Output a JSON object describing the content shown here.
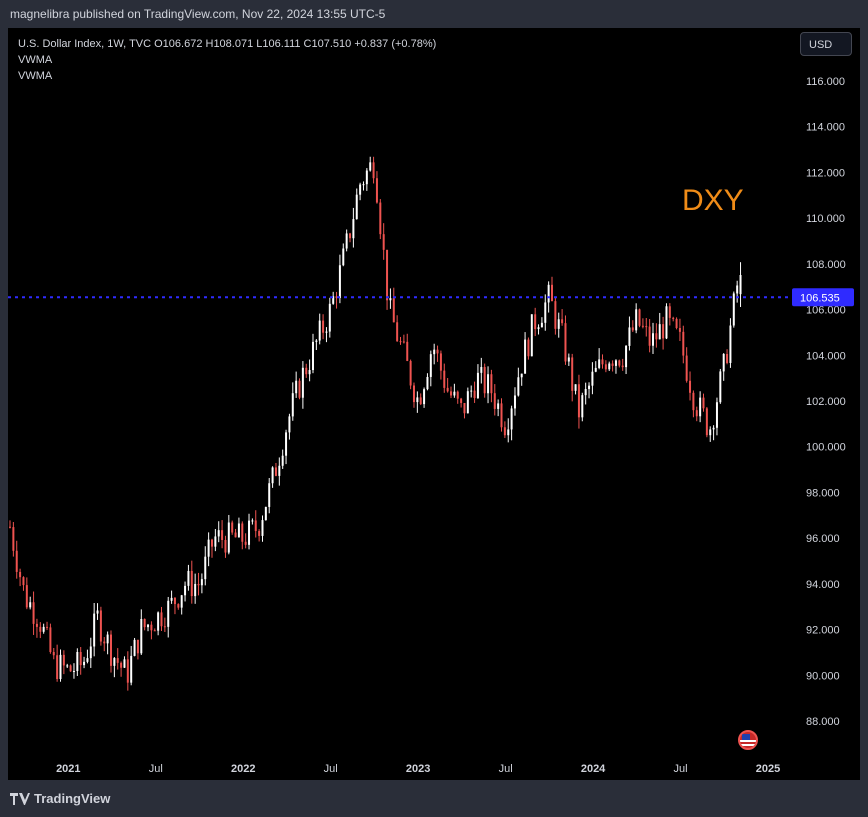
{
  "header": {
    "published_text": "magnelibra published on TradingView.com, Nov 22, 2024 13:55 UTC-5"
  },
  "legend": {
    "symbol_line": "U.S. Dollar Index, 1W, TVC  O106.672  H108.071  L106.111  C107.510  +0.837 (+0.78%)",
    "indicator_1": "VWMA",
    "indicator_2": "VWMA"
  },
  "currency_button": "USD",
  "annotation": "DXY",
  "price_tag": "106.535",
  "footer": {
    "logo_text": "TradingView"
  },
  "colors": {
    "background": "#000000",
    "up": "#ffffff",
    "down": "#ef5350",
    "price_line": "#2f2bff",
    "annotation": "#f08c18"
  },
  "chart_data": {
    "type": "candlestick",
    "title": "U.S. Dollar Index, 1W, TVC",
    "ylim": [
      87,
      117
    ],
    "y_ticks": [
      "116.000",
      "114.000",
      "112.000",
      "110.000",
      "108.000",
      "106.000",
      "104.000",
      "102.000",
      "100.000",
      "98.000",
      "96.000",
      "94.000",
      "92.000",
      "90.000",
      "88.000"
    ],
    "x_ticks": [
      {
        "label": "2021",
        "bold": true,
        "date": "2021-01"
      },
      {
        "label": "Jul",
        "bold": false,
        "date": "2021-07"
      },
      {
        "label": "2022",
        "bold": true,
        "date": "2022-01"
      },
      {
        "label": "Jul",
        "bold": false,
        "date": "2022-07"
      },
      {
        "label": "2023",
        "bold": true,
        "date": "2023-01"
      },
      {
        "label": "Jul",
        "bold": false,
        "date": "2023-07"
      },
      {
        "label": "2024",
        "bold": true,
        "date": "2024-01"
      },
      {
        "label": "Jul",
        "bold": false,
        "date": "2024-07"
      },
      {
        "label": "2025",
        "bold": true,
        "date": "2025-01"
      }
    ],
    "horizontal_line": 106.535,
    "series_path": [
      [
        "2020-09",
        96.5
      ],
      [
        "2020-10",
        93.5
      ],
      [
        "2020-11",
        92.5
      ],
      [
        "2020-12",
        90.5
      ],
      [
        "2021-01",
        90.2
      ],
      [
        "2021-02",
        90.5
      ],
      [
        "2021-03",
        92.5
      ],
      [
        "2021-04",
        91.0
      ],
      [
        "2021-05",
        90.0
      ],
      [
        "2021-06",
        92.0
      ],
      [
        "2021-07",
        92.5
      ],
      [
        "2021-08",
        93.0
      ],
      [
        "2021-09",
        94.0
      ],
      [
        "2021-10",
        94.0
      ],
      [
        "2021-11",
        96.0
      ],
      [
        "2021-12",
        96.0
      ],
      [
        "2022-01",
        96.0
      ],
      [
        "2022-02",
        96.5
      ],
      [
        "2022-03",
        98.5
      ],
      [
        "2022-04",
        101.0
      ],
      [
        "2022-05",
        103.0
      ],
      [
        "2022-06",
        104.5
      ],
      [
        "2022-07",
        106.0
      ],
      [
        "2022-08",
        108.5
      ],
      [
        "2022-09",
        111.5
      ],
      [
        "2022-10",
        112.5
      ],
      [
        "2022-11",
        106.0
      ],
      [
        "2022-12",
        104.0
      ],
      [
        "2023-01",
        102.0
      ],
      [
        "2023-02",
        104.5
      ],
      [
        "2023-03",
        102.5
      ],
      [
        "2023-04",
        101.5
      ],
      [
        "2023-05",
        103.0
      ],
      [
        "2023-06",
        102.5
      ],
      [
        "2023-07",
        101.0
      ],
      [
        "2023-08",
        103.5
      ],
      [
        "2023-09",
        105.5
      ],
      [
        "2023-10",
        106.5
      ],
      [
        "2023-11",
        104.5
      ],
      [
        "2023-12",
        101.5
      ],
      [
        "2024-01",
        103.0
      ],
      [
        "2024-02",
        104.0
      ],
      [
        "2024-03",
        104.0
      ],
      [
        "2024-04",
        105.5
      ],
      [
        "2024-05",
        104.5
      ],
      [
        "2024-06",
        105.5
      ],
      [
        "2024-07",
        104.5
      ],
      [
        "2024-08",
        102.0
      ],
      [
        "2024-09",
        100.8
      ],
      [
        "2024-10",
        103.5
      ],
      [
        "2024-11",
        107.5
      ]
    ],
    "last_candle": {
      "open": 106.672,
      "high": 108.071,
      "low": 106.111,
      "close": 107.51
    }
  }
}
